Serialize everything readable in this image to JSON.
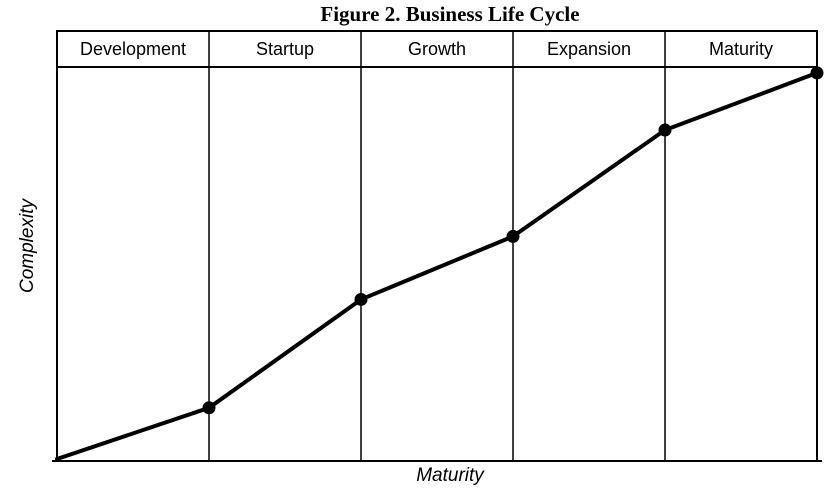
{
  "figure": {
    "title": "Figure 2. Business Life Cycle",
    "xlabel": "Maturity",
    "ylabel": "Complexity"
  },
  "chart_data": {
    "type": "line",
    "title": "Figure 2. Business Life Cycle",
    "xlabel": "Maturity",
    "ylabel": "Complexity",
    "stages": [
      "Development",
      "Startup",
      "Growth",
      "Expansion",
      "Maturity"
    ],
    "x_encoding": "stage boundary index: 0 = left edge of Development, 5 = right edge of Maturity; markers sit on column boundary lines",
    "ylim": [
      0,
      100
    ],
    "series": [
      {
        "name": "Complexity",
        "points": [
          {
            "x": 0,
            "y": 0.5,
            "marker": false
          },
          {
            "x": 1,
            "y": 13.5,
            "marker": true
          },
          {
            "x": 2,
            "y": 41,
            "marker": true
          },
          {
            "x": 3,
            "y": 57,
            "marker": true
          },
          {
            "x": 4,
            "y": 84,
            "marker": true
          },
          {
            "x": 5,
            "y": 98.5,
            "marker": true
          }
        ]
      }
    ],
    "grid": "vertical stage separator lines only, header band ruled across top",
    "legend": "none",
    "colors": {
      "line": "#000000",
      "marker": "#000000",
      "border": "#000000",
      "background": "#ffffff"
    }
  }
}
